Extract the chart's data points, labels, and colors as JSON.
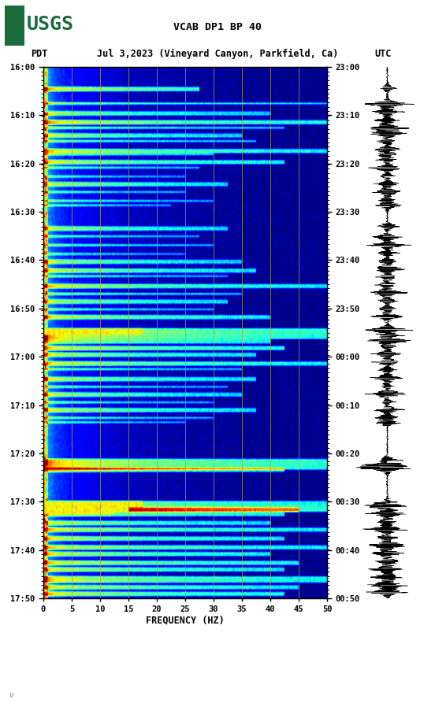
{
  "title_line1": "VCAB DP1 BP 40",
  "title_line2_left": "PDT",
  "title_line2_mid": "Jul 3,2023 (Vineyard Canyon, Parkfield, Ca)",
  "title_line2_right": "UTC",
  "xlabel": "FREQUENCY (HZ)",
  "left_yticks": [
    "16:00",
    "16:10",
    "16:20",
    "16:30",
    "16:40",
    "16:50",
    "17:00",
    "17:10",
    "17:20",
    "17:30",
    "17:40",
    "17:50"
  ],
  "right_yticks": [
    "23:00",
    "23:10",
    "23:20",
    "23:30",
    "23:40",
    "23:50",
    "00:00",
    "00:10",
    "00:20",
    "00:30",
    "00:40",
    "00:50"
  ],
  "xticks": [
    0,
    5,
    10,
    15,
    20,
    25,
    30,
    35,
    40,
    45,
    50
  ],
  "freq_min": 0,
  "freq_max": 50,
  "n_time": 240,
  "n_freq": 500,
  "background_color": "#ffffff",
  "grid_color": "#a0a060",
  "vgrid_positions": [
    5,
    10,
    15,
    20,
    25,
    30,
    35,
    40,
    45
  ],
  "text_color": "#000000",
  "waveform_color": "#000000",
  "fig_width": 5.52,
  "fig_height": 8.93,
  "dpi": 100
}
